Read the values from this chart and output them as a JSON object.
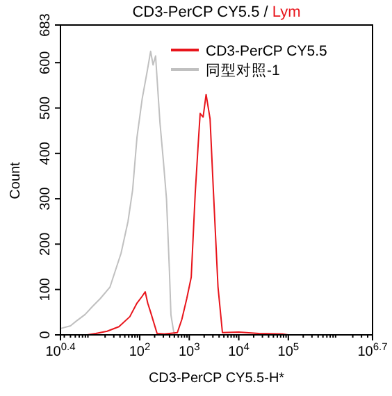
{
  "chart_data": {
    "type": "line",
    "title": "CD3-PerCP CY5.5 / Lym",
    "xlabel": "CD3-PerCP CY5.5-H*",
    "ylabel": "Count",
    "log": "x",
    "xlim": [
      2.5119,
      5011872
    ],
    "ylim": [
      0,
      683
    ],
    "xticks": [
      {
        "value": 2.5119,
        "label": "10$^{0.4}$"
      },
      {
        "value": 100,
        "label": "10$^{2}$"
      },
      {
        "value": 1000,
        "label": "10$^{3}$"
      },
      {
        "value": 10000,
        "label": "10$^{4}$"
      },
      {
        "value": 100000,
        "label": "10$^{5}$"
      },
      {
        "value": 5011872,
        "label": "10$^{6.7}$"
      }
    ],
    "yticks": [
      0,
      100,
      200,
      300,
      400,
      500,
      600,
      683
    ],
    "legend": "top right",
    "grid": false,
    "marker": "none",
    "line_style": "solid",
    "series": [
      {
        "name": "CD3-PerCP CY5.5",
        "color": "#e8141b",
        "x": [
          8.7,
          13,
          22,
          38,
          63,
          88,
          112,
          129,
          145,
          166,
          224,
          316,
          575,
          708,
          891,
          1096,
          1318,
          1514,
          1660,
          1905,
          2188,
          2630,
          3090,
          3802,
          4677,
          10000,
          25119,
          75858,
          100000
        ],
        "values": [
          0,
          3,
          8,
          18,
          40,
          70,
          85,
          95,
          70,
          50,
          3,
          2,
          5,
          34,
          80,
          127,
          311,
          420,
          488,
          480,
          530,
          476,
          311,
          106,
          5,
          6,
          3,
          2,
          0
        ]
      },
      {
        "name": "同型对照-1",
        "color": "#c0c0c0",
        "x": [
          2.52,
          4,
          5.2,
          7.9,
          11,
          16,
          25,
          42,
          58,
          72,
          88,
          112,
          141,
          166,
          186,
          209,
          257,
          302,
          347,
          398,
          427,
          479,
          513
        ],
        "values": [
          14,
          20,
          30,
          45,
          62,
          80,
          105,
          180,
          250,
          320,
          435,
          520,
          580,
          625,
          595,
          615,
          466,
          380,
          300,
          140,
          44,
          10,
          0
        ]
      }
    ]
  }
}
